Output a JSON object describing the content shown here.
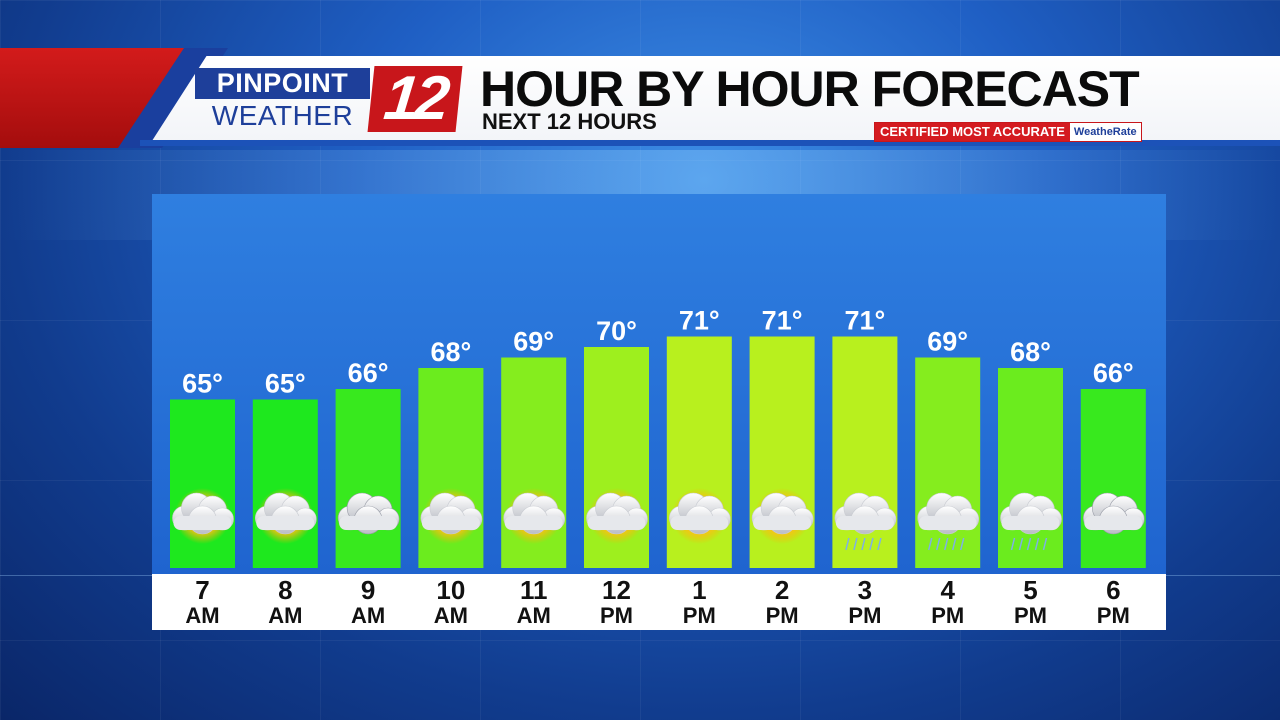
{
  "header": {
    "logo_top": "PINPOINT",
    "logo_bottom": "WEATHER",
    "logo_number": "12",
    "title": "HOUR BY HOUR FORECAST",
    "subtitle": "NEXT 12 HOURS",
    "certified": "CERTIFIED MOST ACCURATE",
    "weatherate": "WeatheRate"
  },
  "colors": {
    "brand_red": "#c8161b",
    "brand_blue": "#1e3f9a",
    "bar_cool": "#1ee81e",
    "bar_warm": "#b8f01e"
  },
  "chart_data": {
    "type": "bar",
    "categories": [
      "7 AM",
      "8 AM",
      "9 AM",
      "10 AM",
      "11 AM",
      "12 PM",
      "1 PM",
      "2 PM",
      "3 PM",
      "4 PM",
      "5 PM",
      "6 PM"
    ],
    "hours": [
      {
        "hr": "7",
        "ap": "AM"
      },
      {
        "hr": "8",
        "ap": "AM"
      },
      {
        "hr": "9",
        "ap": "AM"
      },
      {
        "hr": "10",
        "ap": "AM"
      },
      {
        "hr": "11",
        "ap": "AM"
      },
      {
        "hr": "12",
        "ap": "PM"
      },
      {
        "hr": "1",
        "ap": "PM"
      },
      {
        "hr": "2",
        "ap": "PM"
      },
      {
        "hr": "3",
        "ap": "PM"
      },
      {
        "hr": "4",
        "ap": "PM"
      },
      {
        "hr": "5",
        "ap": "PM"
      },
      {
        "hr": "6",
        "ap": "PM"
      }
    ],
    "values": [
      65,
      65,
      66,
      68,
      69,
      70,
      71,
      71,
      71,
      69,
      68,
      66
    ],
    "value_labels": [
      "65°",
      "65°",
      "66°",
      "68°",
      "69°",
      "70°",
      "71°",
      "71°",
      "71°",
      "69°",
      "68°",
      "66°"
    ],
    "conditions": [
      "partly-sunny",
      "partly-sunny",
      "cloudy",
      "partly-sunny",
      "partly-sunny",
      "partly-sunny",
      "partly-sunny",
      "partly-sunny",
      "showers",
      "showers",
      "showers",
      "cloudy"
    ],
    "condition_icons": [
      "partly-sunny-icon",
      "partly-sunny-icon",
      "cloudy-icon",
      "partly-sunny-icon",
      "partly-sunny-icon",
      "partly-sunny-icon",
      "partly-sunny-icon",
      "partly-sunny-icon",
      "rain-shower-icon",
      "rain-shower-icon",
      "rain-shower-icon",
      "cloudy-icon"
    ],
    "unit": "°F",
    "title": "HOUR BY HOUR FORECAST",
    "xlabel": "",
    "ylabel": ""
  }
}
